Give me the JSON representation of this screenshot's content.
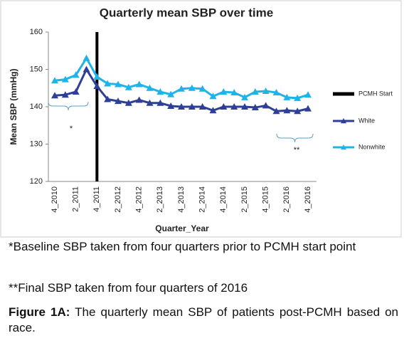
{
  "chart_data": {
    "type": "line",
    "title": "Quarterly mean SBP over time",
    "y_label": "Mean SBP (mmHg)",
    "x_label": "Quarter_Year",
    "categories": [
      "4_2010",
      null,
      "2_2011",
      null,
      "4_2011",
      null,
      "2_2012",
      null,
      "4_2012",
      null,
      "2_2013",
      null,
      "4_2013",
      null,
      "2_2014",
      null,
      "4_2014",
      null,
      "2_2015",
      null,
      "4_2015",
      null,
      "2_2016",
      null,
      "4_2016"
    ],
    "series": [
      {
        "name": "White",
        "color": "#2e3f97",
        "values": [
          143,
          143.2,
          144,
          150,
          145.5,
          142,
          141.5,
          141,
          141.8,
          141,
          141,
          140.2,
          140,
          140,
          140,
          139,
          140,
          140,
          140,
          139.8,
          140.3,
          138.8,
          139,
          138.8,
          139.5
        ]
      },
      {
        "name": "Nonwhite",
        "color": "#1fb4e8",
        "values": [
          147,
          147.3,
          148.5,
          153,
          148,
          146.2,
          146,
          145.2,
          146,
          145,
          144,
          143.3,
          144.8,
          145,
          144.8,
          142.8,
          144,
          143.8,
          142.5,
          144,
          144.2,
          143.8,
          142.5,
          142.3,
          143.2
        ]
      }
    ],
    "vline": {
      "label": "PCMH Start",
      "at": "4_2011",
      "color": "#000000"
    },
    "annotations": [
      "*",
      "**"
    ],
    "ylim": [
      120,
      160
    ],
    "yticks": [
      120,
      130,
      140,
      150,
      160
    ],
    "grid": false,
    "legend": "right"
  },
  "caption": {
    "note1": "*Baseline SBP taken from four quarters prior to PCMH start point",
    "note2": "**Final SBP taken from four quarters of 2016",
    "figure_label": "Figure 1A:",
    "figure_text": "The quarterly mean SBP of patients post-PCMH based on race."
  }
}
